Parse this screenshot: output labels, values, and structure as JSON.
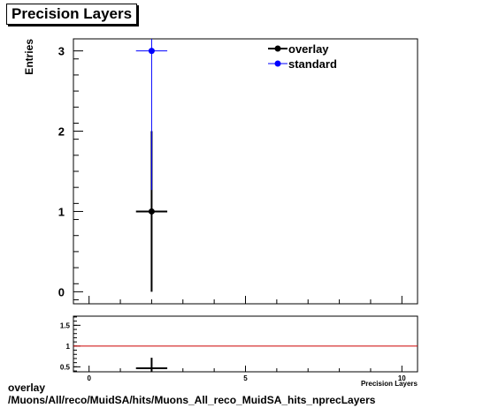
{
  "title": "Precision Layers",
  "footer": {
    "line1": "overlay",
    "line2": "/Muons/All/reco/MuidSA/hits/Muons_All_reco_MuidSA_hits_nprecLayers"
  },
  "chart_data": [
    {
      "type": "scatter",
      "title": "Precision Layers",
      "ylabel": "Entries",
      "xlabel": "Precision Layers",
      "xlim": [
        -0.5,
        10.5
      ],
      "ylim": [
        -0.15,
        3.15
      ],
      "xticks": [],
      "yticks": [
        0,
        1,
        2,
        3
      ],
      "legend_position": "top-right",
      "series": [
        {
          "name": "overlay",
          "color": "#000000",
          "points": [
            {
              "x": 2,
              "y": 1,
              "xerr": 0.5,
              "yerr": 1
            }
          ]
        },
        {
          "name": "standard",
          "color": "#0000ff",
          "points": [
            {
              "x": 2,
              "y": 3,
              "xerr": 0.5,
              "yerr": 1.732
            }
          ]
        }
      ]
    },
    {
      "type": "scatter",
      "xlabel": "Precision Layers",
      "xlim": [
        -0.5,
        10.5
      ],
      "ylim": [
        0.38,
        1.72
      ],
      "xticks": [
        0,
        5,
        10
      ],
      "yticks": [
        0.5,
        1,
        1.5
      ],
      "reference_line": {
        "y": 1,
        "color": "#cc0000"
      },
      "series": [
        {
          "name": "",
          "color": "#000000",
          "points": [
            {
              "x": 2,
              "y": 0.333,
              "xerr": 0.5,
              "yerr": 0.385
            }
          ]
        }
      ]
    }
  ]
}
